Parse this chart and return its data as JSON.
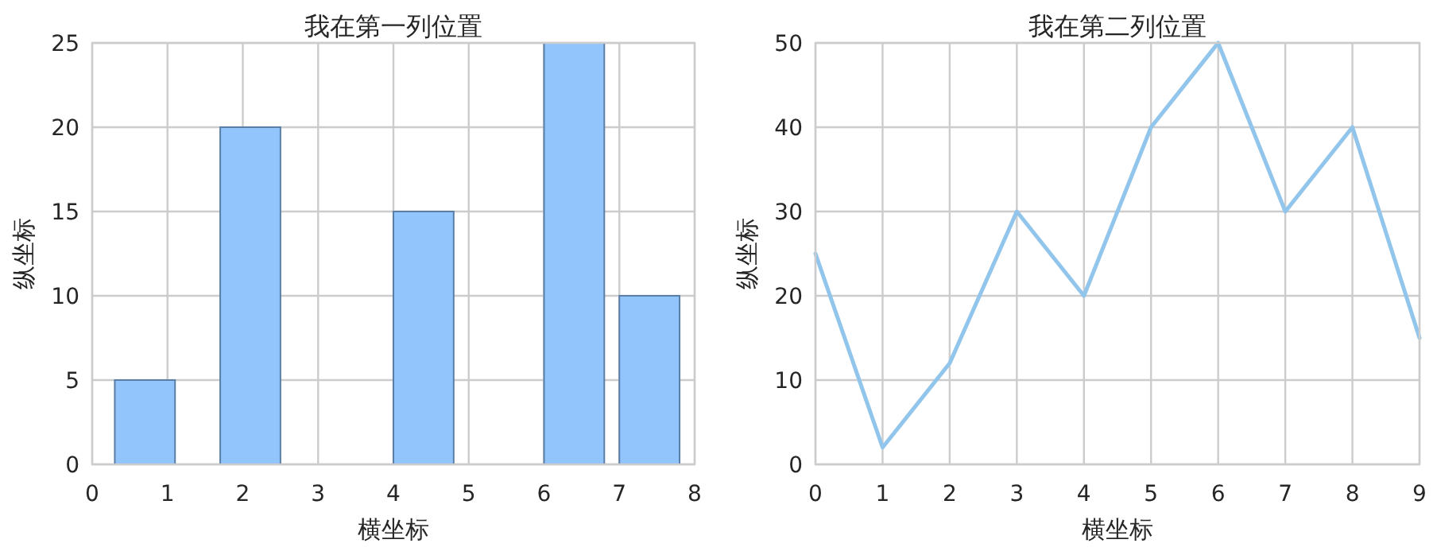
{
  "chart_data": [
    {
      "type": "bar",
      "title": "我在第一列位置",
      "xlabel": "横坐标",
      "ylabel": "纵坐标",
      "x": [
        0.7,
        2.1,
        4.4,
        6.4,
        7.4
      ],
      "values": [
        5,
        20,
        15,
        25,
        10
      ],
      "color": "#92c5fc",
      "xlim": [
        0,
        8
      ],
      "ylim": [
        0,
        25
      ],
      "xticks": [
        0,
        1,
        2,
        3,
        4,
        5,
        6,
        7,
        8
      ],
      "yticks": [
        0,
        5,
        10,
        15,
        20,
        25
      ],
      "grid": true
    },
    {
      "type": "line",
      "title": "我在第二列位置",
      "xlabel": "横坐标",
      "ylabel": "纵坐标",
      "x": [
        0,
        1,
        2,
        3,
        4,
        5,
        6,
        7,
        8,
        9
      ],
      "values": [
        25,
        2,
        12,
        30,
        20,
        40,
        50,
        30,
        40,
        15
      ],
      "color": "#92c5ec",
      "xlim": [
        0,
        9
      ],
      "ylim": [
        0,
        50
      ],
      "xticks": [
        0,
        1,
        2,
        3,
        4,
        5,
        6,
        7,
        8,
        9
      ],
      "yticks": [
        0,
        10,
        20,
        30,
        40,
        50
      ],
      "grid": true,
      "marker": "none",
      "line_style": "solid"
    }
  ]
}
